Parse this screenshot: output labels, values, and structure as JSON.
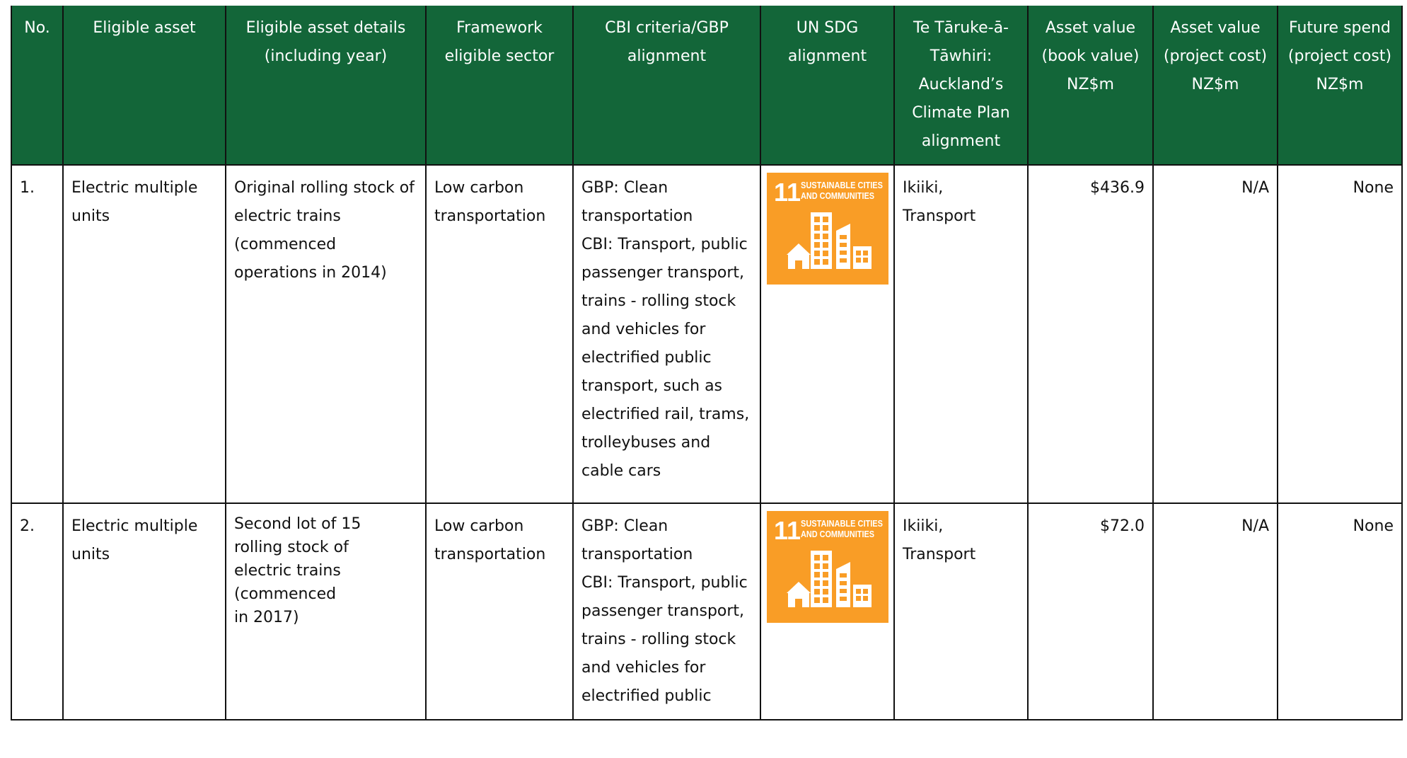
{
  "table": {
    "header": [
      "No.",
      "Eligible asset",
      "Eligible asset details (including year)",
      "Framework eligible sector",
      "CBI criteria/GBP alignment",
      "UN SDG alignment",
      "Te Tāruke-ā-Tāwhiri: Auckland’s Climate Plan alignment",
      "Asset value (book value) NZ$m",
      "Asset value (project cost) NZ$m",
      "Future spend (project cost) NZ$m"
    ],
    "rows": [
      [
        "1.",
        "Electric multiple units",
        "Original rolling stock of electric trains (commenced operations in 2014)",
        "Low carbon transportation",
        "GBP: Clean transportation\nCBI: Transport, public passenger transport, trains - rolling stock and vehicles for electrified public transport, such as electrified rail, trams, trolleybuses and cable cars",
        {
          "number": "11",
          "line1": "SUSTAINABLE CITIES",
          "line2": "AND COMMUNITIES"
        },
        "Ikiiki,\nTransport",
        "$436.9",
        "N/A",
        "None"
      ],
      [
        "2.",
        "Electric multiple units",
        "Second lot of 15\nrolling stock of\nelectric trains\n(commenced\nin 2017)",
        "Low carbon transportation",
        "GBP: Clean transportation\nCBI: Transport, public passenger transport, trains - rolling stock and vehicles for electrified public",
        {
          "number": "11",
          "line1": "SUSTAINABLE CITIES",
          "line2": "AND COMMUNITIES"
        },
        "Ikiiki,\nTransport",
        "$72.0",
        "N/A",
        "None"
      ]
    ]
  }
}
